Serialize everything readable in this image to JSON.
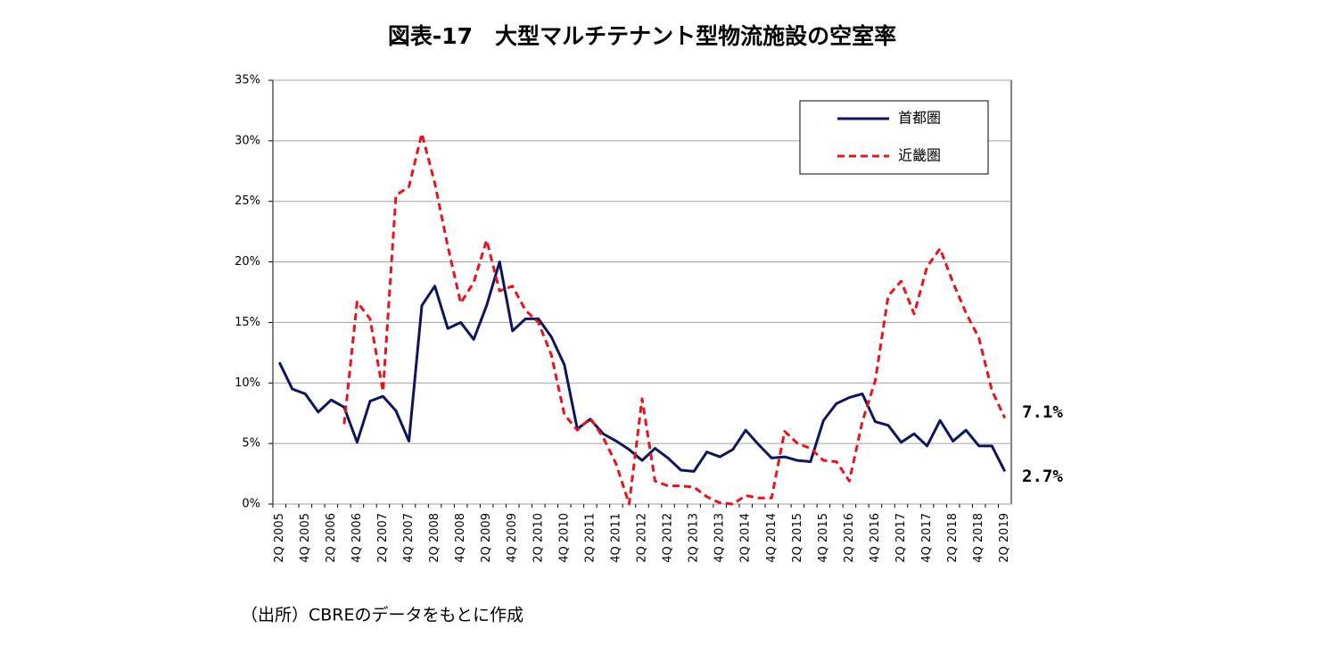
{
  "chart_data": {
    "type": "line",
    "title": "図表-17　大型マルチテナント型物流施設の空室率",
    "source": "（出所）CBREのデータをもとに作成",
    "categories": [
      "2Q 2005",
      null,
      "4Q 2005",
      null,
      "2Q 2006",
      null,
      "4Q 2006",
      null,
      "2Q 2007",
      null,
      "4Q 2007",
      null,
      "2Q 2008",
      null,
      "4Q 2008",
      null,
      "2Q 2009",
      null,
      "4Q 2009",
      null,
      "2Q 2010",
      null,
      "4Q 2010",
      null,
      "2Q 2011",
      null,
      "4Q 2011",
      null,
      "2Q 2012",
      null,
      "4Q 2012",
      null,
      "2Q 2013",
      null,
      "4Q 2013",
      null,
      "2Q 2014",
      null,
      "4Q 2014",
      null,
      "2Q 2015",
      null,
      "4Q 2015",
      null,
      "2Q 2016",
      null,
      "4Q 2016",
      null,
      "2Q 2017",
      null,
      "4Q 2017",
      null,
      "2Q 2018",
      null,
      "4Q 2018",
      null,
      "2Q 2019"
    ],
    "series": [
      {
        "name": "首都圏",
        "color": "#0d1560",
        "dash": false,
        "values": [
          11.7,
          9.5,
          9.1,
          7.6,
          8.6,
          8.0,
          5.1,
          8.5,
          8.9,
          7.7,
          5.2,
          16.4,
          18.0,
          14.5,
          15.0,
          13.6,
          16.4,
          20.0,
          14.3,
          15.3,
          15.3,
          13.8,
          11.5,
          6.2,
          7.0,
          5.8,
          5.2,
          4.5,
          3.6,
          4.6,
          3.8,
          2.8,
          2.7,
          4.3,
          3.9,
          4.5,
          6.1,
          4.9,
          3.8,
          3.9,
          3.6,
          3.5,
          6.9,
          8.3,
          8.8,
          9.1,
          6.8,
          6.5,
          5.1,
          5.8,
          4.8,
          6.9,
          5.2,
          6.1,
          4.8,
          4.8,
          2.7
        ],
        "value_labels": [
          null,
          null,
          null,
          null,
          null,
          null,
          null,
          null,
          null,
          null,
          null,
          null,
          null,
          null,
          null,
          null,
          null,
          null,
          null,
          null,
          null,
          null,
          null,
          null,
          null,
          null,
          null,
          null,
          null,
          null,
          null,
          null,
          null,
          null,
          null,
          null,
          null,
          null,
          null,
          null,
          null,
          null,
          null,
          null,
          null,
          null,
          null,
          null,
          null,
          null,
          null,
          null,
          null,
          null,
          null,
          null,
          "2.7%"
        ]
      },
      {
        "name": "近畿圏",
        "color": "#e8141c",
        "dash": true,
        "values": [
          null,
          null,
          null,
          null,
          null,
          6.6,
          16.7,
          15.3,
          9.3,
          25.5,
          26.2,
          30.6,
          26.5,
          21.3,
          16.6,
          18.3,
          21.8,
          17.6,
          18.0,
          16.0,
          15.0,
          12.3,
          7.4,
          6.1,
          7.1,
          5.5,
          3.3,
          0.0,
          8.7,
          1.9,
          1.5,
          1.5,
          1.4,
          0.6,
          0.1,
          0.0,
          0.7,
          0.5,
          0.5,
          6.0,
          5.0,
          4.6,
          3.6,
          3.5,
          1.9,
          6.8,
          10.2,
          17.2,
          18.4,
          15.7,
          19.6,
          21.1,
          18.3,
          15.8,
          13.7,
          9.4,
          7.1
        ],
        "value_labels": [
          null,
          null,
          null,
          null,
          null,
          null,
          null,
          null,
          null,
          null,
          null,
          null,
          null,
          null,
          null,
          null,
          null,
          null,
          null,
          null,
          null,
          null,
          null,
          null,
          null,
          null,
          null,
          null,
          null,
          null,
          null,
          null,
          null,
          null,
          null,
          null,
          null,
          null,
          null,
          null,
          null,
          null,
          null,
          null,
          null,
          null,
          null,
          null,
          null,
          null,
          null,
          null,
          null,
          null,
          null,
          null,
          "7.1%"
        ]
      }
    ],
    "ylim": [
      0,
      35
    ],
    "yticks": [
      {
        "value": 0,
        "label": "0%"
      },
      {
        "value": 5,
        "label": "5%"
      },
      {
        "value": 10,
        "label": "10%"
      },
      {
        "value": 15,
        "label": "15%"
      },
      {
        "value": 20,
        "label": "20%"
      },
      {
        "value": 25,
        "label": "25%"
      },
      {
        "value": 30,
        "label": "30%"
      },
      {
        "value": 35,
        "label": "35%"
      }
    ],
    "grid": true,
    "legend": "top-right"
  }
}
